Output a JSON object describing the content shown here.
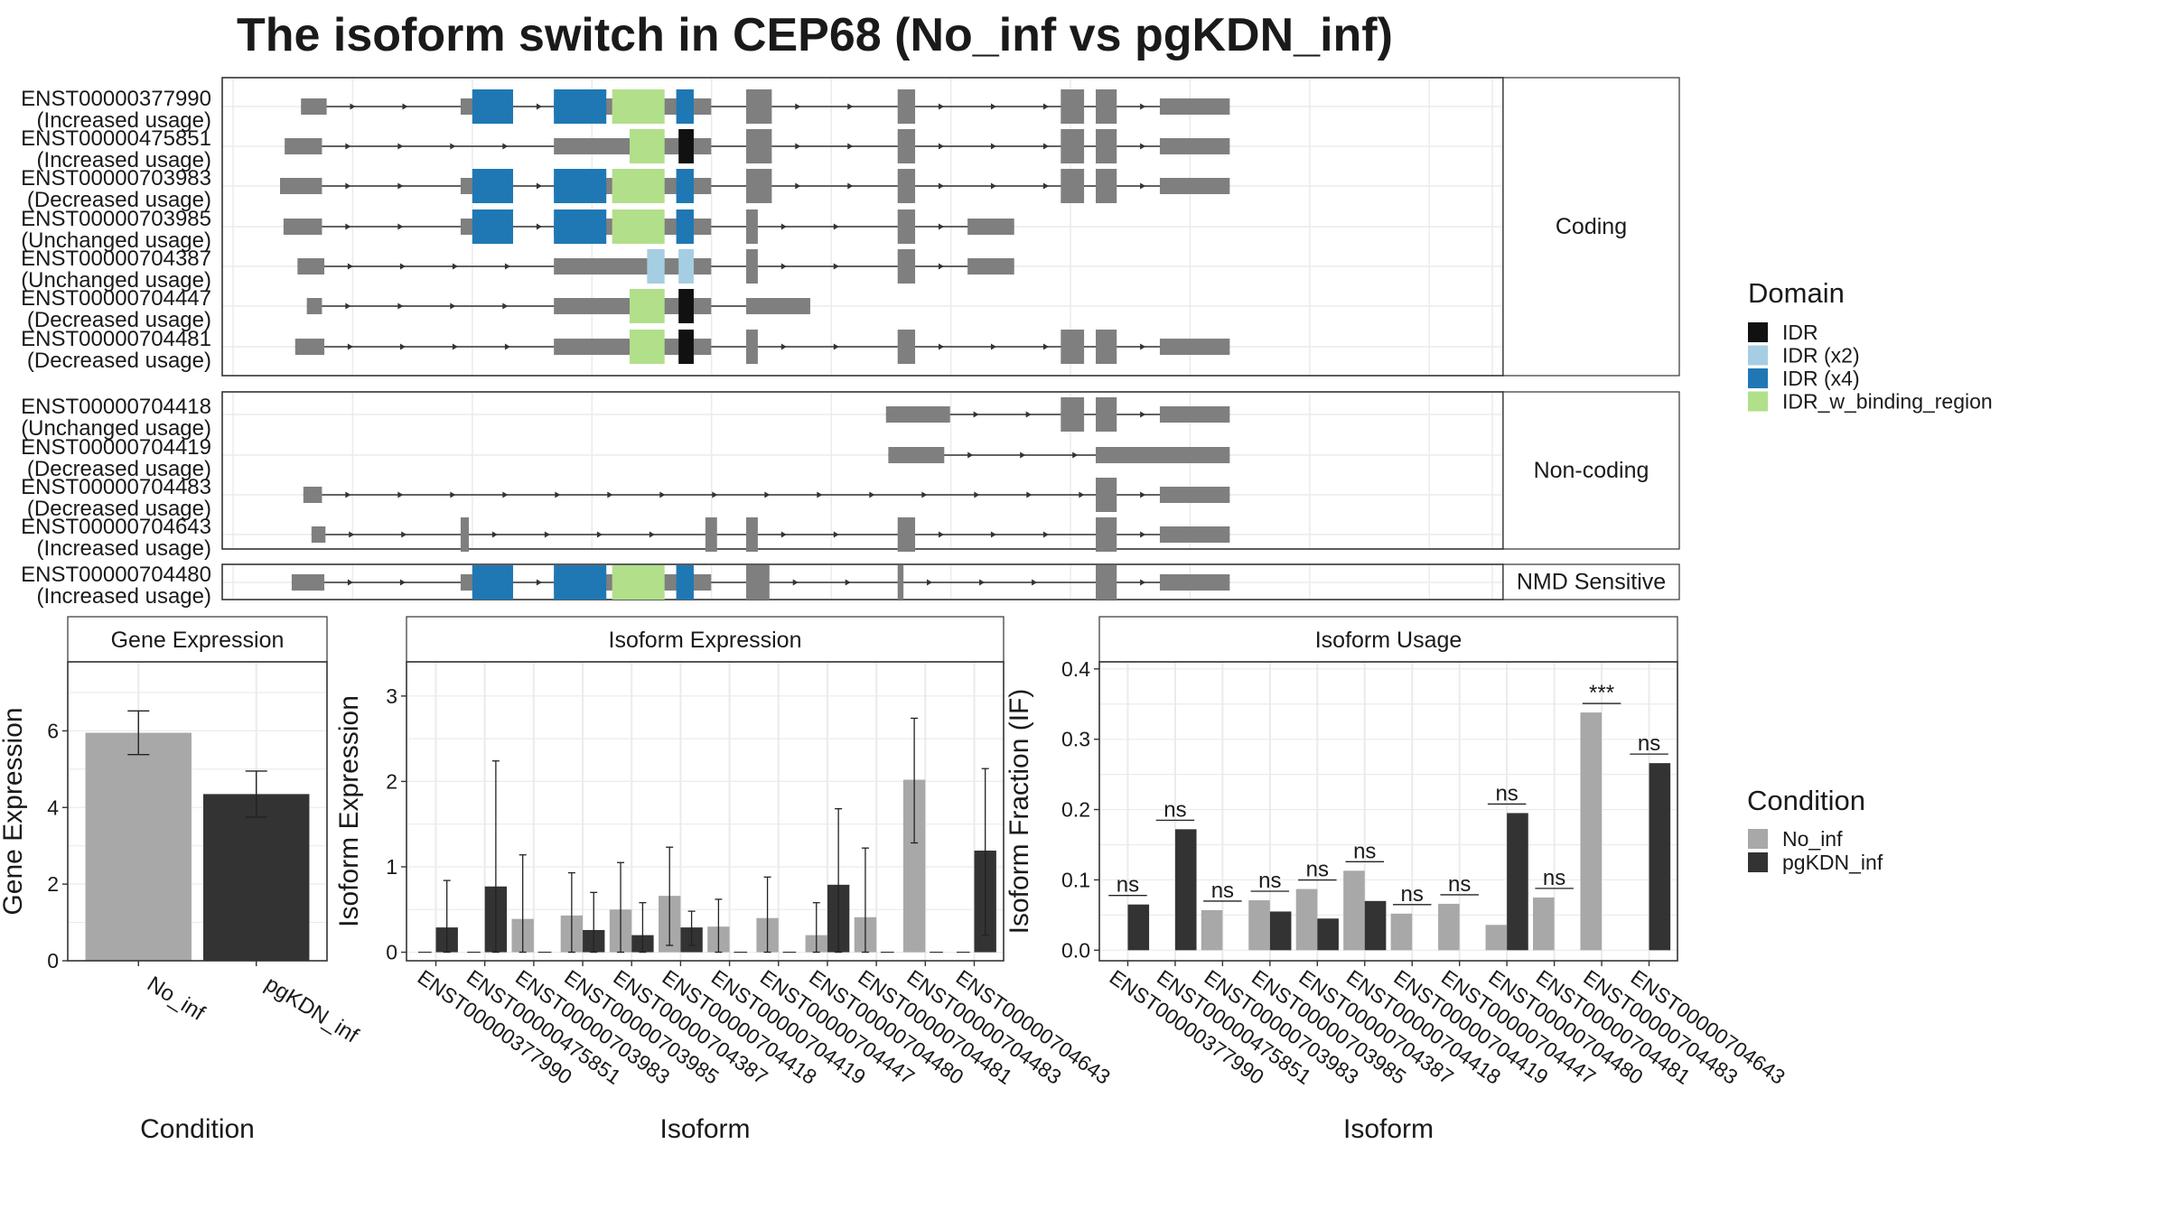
{
  "figure": {
    "title": "The isoform switch in CEP68 (No_inf vs pgKDN_inf)"
  },
  "colors": {
    "exon": "#7f7f7f",
    "intron": "#333333",
    "IDR": "#111111",
    "IDR (x2)": "#a6cee3",
    "IDR (x4)": "#1f78b4",
    "IDR_w_binding_region": "#b2df8a",
    "No_inf": "#a8a8a8",
    "pgKDN_inf": "#333333",
    "panel_border": "#333333",
    "grid": "#ebebeb"
  },
  "chart_data": [
    {
      "type": "gene_structure",
      "title": "The isoform switch in CEP68 (No_inf vs pgKDN_inf)",
      "legend": {
        "title": "Domain",
        "entries": [
          "IDR",
          "IDR (x2)",
          "IDR (x4)",
          "IDR_w_binding_region"
        ]
      },
      "groups": [
        {
          "label": "Coding",
          "transcripts": [
            {
              "id": "ENST00000377990",
              "usage": "(Increased usage)",
              "start": 0.018,
              "end": 0.815,
              "exons": [
                [
                  0.018,
                  0.04
                ],
                [
                  0.155,
                  0.2
                ],
                [
                  0.235,
                  0.37
                ],
                [
                  0.4,
                  0.422
                ],
                [
                  0.53,
                  0.545
                ],
                [
                  0.67,
                  0.69
                ],
                [
                  0.7,
                  0.718
                ],
                [
                  0.755,
                  0.815
                ]
              ],
              "domains": [
                {
                  "d": "IDR (x4)",
                  "s": 0.165,
                  "e": 0.2
                },
                {
                  "d": "IDR (x4)",
                  "s": 0.235,
                  "e": 0.28
                },
                {
                  "d": "IDR_w_binding_region",
                  "s": 0.285,
                  "e": 0.33
                },
                {
                  "d": "IDR (x4)",
                  "s": 0.34,
                  "e": 0.355
                }
              ]
            },
            {
              "id": "ENST00000475851",
              "usage": "(Increased usage)",
              "start": 0.004,
              "end": 0.815,
              "exons": [
                [
                  0.004,
                  0.036
                ],
                [
                  0.235,
                  0.37
                ],
                [
                  0.4,
                  0.422
                ],
                [
                  0.53,
                  0.545
                ],
                [
                  0.67,
                  0.69
                ],
                [
                  0.7,
                  0.718
                ],
                [
                  0.755,
                  0.815
                ]
              ],
              "domains": [
                {
                  "d": "IDR_w_binding_region",
                  "s": 0.3,
                  "e": 0.33
                },
                {
                  "d": "IDR",
                  "s": 0.342,
                  "e": 0.355
                }
              ]
            },
            {
              "id": "ENST00000703983",
              "usage": "(Decreased usage)",
              "start": 0.0,
              "end": 0.815,
              "exons": [
                [
                  0.0,
                  0.036
                ],
                [
                  0.155,
                  0.2
                ],
                [
                  0.235,
                  0.37
                ],
                [
                  0.4,
                  0.422
                ],
                [
                  0.53,
                  0.545
                ],
                [
                  0.67,
                  0.69
                ],
                [
                  0.7,
                  0.718
                ],
                [
                  0.755,
                  0.815
                ]
              ],
              "domains": [
                {
                  "d": "IDR (x4)",
                  "s": 0.165,
                  "e": 0.2
                },
                {
                  "d": "IDR (x4)",
                  "s": 0.235,
                  "e": 0.28
                },
                {
                  "d": "IDR_w_binding_region",
                  "s": 0.285,
                  "e": 0.33
                },
                {
                  "d": "IDR (x4)",
                  "s": 0.34,
                  "e": 0.355
                }
              ]
            },
            {
              "id": "ENST00000703985",
              "usage": "(Unchanged usage)",
              "start": 0.003,
              "end": 0.63,
              "exons": [
                [
                  0.003,
                  0.036
                ],
                [
                  0.155,
                  0.2
                ],
                [
                  0.235,
                  0.37
                ],
                [
                  0.4,
                  0.41
                ],
                [
                  0.53,
                  0.545
                ],
                [
                  0.59,
                  0.63
                ]
              ],
              "domains": [
                {
                  "d": "IDR (x4)",
                  "s": 0.165,
                  "e": 0.2
                },
                {
                  "d": "IDR (x4)",
                  "s": 0.235,
                  "e": 0.28
                },
                {
                  "d": "IDR_w_binding_region",
                  "s": 0.285,
                  "e": 0.33
                },
                {
                  "d": "IDR (x4)",
                  "s": 0.34,
                  "e": 0.355
                }
              ]
            },
            {
              "id": "ENST00000704387",
              "usage": "(Unchanged usage)",
              "start": 0.015,
              "end": 0.63,
              "exons": [
                [
                  0.015,
                  0.038
                ],
                [
                  0.235,
                  0.37
                ],
                [
                  0.4,
                  0.41
                ],
                [
                  0.53,
                  0.545
                ],
                [
                  0.59,
                  0.63
                ]
              ],
              "domains": [
                {
                  "d": "IDR (x2)",
                  "s": 0.315,
                  "e": 0.33
                },
                {
                  "d": "IDR (x2)",
                  "s": 0.342,
                  "e": 0.355
                }
              ]
            },
            {
              "id": "ENST00000704447",
              "usage": "(Decreased usage)",
              "start": 0.023,
              "end": 0.455,
              "exons": [
                [
                  0.023,
                  0.036
                ],
                [
                  0.235,
                  0.37
                ],
                [
                  0.4,
                  0.455
                ]
              ],
              "domains": [
                {
                  "d": "IDR_w_binding_region",
                  "s": 0.3,
                  "e": 0.33
                },
                {
                  "d": "IDR",
                  "s": 0.342,
                  "e": 0.355
                }
              ]
            },
            {
              "id": "ENST00000704481",
              "usage": "(Decreased usage)",
              "start": 0.013,
              "end": 0.815,
              "exons": [
                [
                  0.013,
                  0.038
                ],
                [
                  0.235,
                  0.37
                ],
                [
                  0.4,
                  0.41
                ],
                [
                  0.53,
                  0.545
                ],
                [
                  0.67,
                  0.69
                ],
                [
                  0.7,
                  0.718
                ],
                [
                  0.755,
                  0.815
                ]
              ],
              "domains": [
                {
                  "d": "IDR_w_binding_region",
                  "s": 0.3,
                  "e": 0.33
                },
                {
                  "d": "IDR",
                  "s": 0.342,
                  "e": 0.355
                }
              ]
            }
          ]
        },
        {
          "label": "Non-coding",
          "transcripts": [
            {
              "id": "ENST00000704418",
              "usage": "(Unchanged usage)",
              "start": 0.52,
              "end": 0.815,
              "exons": [
                [
                  0.52,
                  0.575
                ],
                [
                  0.67,
                  0.69
                ],
                [
                  0.7,
                  0.718
                ],
                [
                  0.755,
                  0.815
                ]
              ],
              "domains": []
            },
            {
              "id": "ENST00000704419",
              "usage": "(Decreased usage)",
              "start": 0.522,
              "end": 0.815,
              "exons": [
                [
                  0.522,
                  0.57
                ],
                [
                  0.7,
                  0.815
                ]
              ],
              "domains": []
            },
            {
              "id": "ENST00000704483",
              "usage": "(Decreased usage)",
              "start": 0.02,
              "end": 0.815,
              "exons": [
                [
                  0.02,
                  0.036
                ],
                [
                  0.7,
                  0.718
                ],
                [
                  0.755,
                  0.815
                ]
              ],
              "domains": []
            },
            {
              "id": "ENST00000704643",
              "usage": "(Increased usage)",
              "start": 0.027,
              "end": 0.815,
              "exons": [
                [
                  0.027,
                  0.039
                ],
                [
                  0.155,
                  0.162
                ],
                [
                  0.365,
                  0.375
                ],
                [
                  0.4,
                  0.41
                ],
                [
                  0.53,
                  0.545
                ],
                [
                  0.7,
                  0.718
                ],
                [
                  0.755,
                  0.815
                ]
              ],
              "domains": []
            }
          ]
        },
        {
          "label": "NMD Sensitive",
          "transcripts": [
            {
              "id": "ENST00000704480",
              "usage": "(Increased usage)",
              "start": 0.01,
              "end": 0.815,
              "exons": [
                [
                  0.01,
                  0.038
                ],
                [
                  0.155,
                  0.2
                ],
                [
                  0.235,
                  0.37
                ],
                [
                  0.4,
                  0.42
                ],
                [
                  0.53,
                  0.535
                ],
                [
                  0.7,
                  0.718
                ],
                [
                  0.755,
                  0.815
                ]
              ],
              "domains": [
                {
                  "d": "IDR (x4)",
                  "s": 0.165,
                  "e": 0.2
                },
                {
                  "d": "IDR (x4)",
                  "s": 0.235,
                  "e": 0.28
                },
                {
                  "d": "IDR_w_binding_region",
                  "s": 0.285,
                  "e": 0.33
                },
                {
                  "d": "IDR (x4)",
                  "s": 0.34,
                  "e": 0.355
                }
              ]
            }
          ]
        }
      ]
    },
    {
      "type": "bar",
      "title": "Gene Expression",
      "xlabel": "Condition",
      "ylabel": "Gene Expression",
      "ylim": [
        0,
        7.8
      ],
      "yticks": [
        0,
        2,
        4,
        6
      ],
      "categories": [
        "No_inf",
        "pgKDN_inf"
      ],
      "values": [
        5.95,
        4.35
      ],
      "errors": [
        [
          5.38,
          6.52
        ],
        [
          3.75,
          4.95
        ]
      ]
    },
    {
      "type": "bar",
      "title": "Isoform Expression",
      "xlabel": "Isoform",
      "ylabel": "Isoform Expression",
      "ylim": [
        -0.1,
        3.4
      ],
      "yticks": [
        0,
        1,
        2,
        3
      ],
      "categories": [
        "ENST00000377990",
        "ENST00000475851",
        "ENST00000703983",
        "ENST00000703985",
        "ENST00000704387",
        "ENST00000704418",
        "ENST00000704419",
        "ENST00000704447",
        "ENST00000704480",
        "ENST00000704481",
        "ENST00000704483",
        "ENST00000704643"
      ],
      "series": [
        {
          "name": "No_inf",
          "values": [
            0,
            0,
            0.39,
            0.43,
            0.5,
            0.66,
            0.3,
            0.4,
            0.2,
            0.41,
            2.02,
            0
          ],
          "errors": [
            [
              0,
              0
            ],
            [
              0,
              0
            ],
            [
              0,
              1.14
            ],
            [
              0,
              0.93
            ],
            [
              0,
              1.05
            ],
            [
              0.08,
              1.23
            ],
            [
              0,
              0.62
            ],
            [
              0,
              0.88
            ],
            [
              0,
              0.58
            ],
            [
              0,
              1.22
            ],
            [
              1.28,
              2.74
            ],
            [
              0,
              0
            ]
          ]
        },
        {
          "name": "pgKDN_inf",
          "values": [
            0.29,
            0.77,
            0,
            0.26,
            0.2,
            0.29,
            0,
            0,
            0.79,
            0,
            0,
            1.19
          ],
          "errors": [
            [
              0,
              0.84
            ],
            [
              0,
              2.24
            ],
            [
              0,
              0
            ],
            [
              0,
              0.7
            ],
            [
              0,
              0.58
            ],
            [
              0.08,
              0.48
            ],
            [
              0,
              0
            ],
            [
              0,
              0
            ],
            [
              0,
              1.68
            ],
            [
              0,
              0
            ],
            [
              0,
              0
            ],
            [
              0.2,
              2.15
            ]
          ]
        }
      ]
    },
    {
      "type": "bar",
      "title": "Isoform Usage",
      "xlabel": "Isoform",
      "ylabel": "Isoform Fraction (IF)",
      "ylim": [
        -0.015,
        0.41
      ],
      "yticks": [
        "0.0",
        "0.1",
        "0.2",
        "0.3",
        "0.4"
      ],
      "categories": [
        "ENST00000377990",
        "ENST00000475851",
        "ENST00000703983",
        "ENST00000703985",
        "ENST00000704387",
        "ENST00000704418",
        "ENST00000704419",
        "ENST00000704447",
        "ENST00000704480",
        "ENST00000704481",
        "ENST00000704483",
        "ENST00000704643"
      ],
      "series": [
        {
          "name": "No_inf",
          "values": [
            0,
            0,
            0.057,
            0.071,
            0.087,
            0.113,
            0.052,
            0.066,
            0.036,
            0.075,
            0.338,
            0
          ]
        },
        {
          "name": "pgKDN_inf",
          "values": [
            0.065,
            0.172,
            0,
            0.055,
            0.045,
            0.07,
            0,
            0,
            0.195,
            0,
            0,
            0.266
          ]
        }
      ],
      "annotations": [
        "ns",
        "ns",
        "ns",
        "ns",
        "ns",
        "ns",
        "ns",
        "ns",
        "ns",
        "ns",
        "***",
        "ns"
      ]
    }
  ],
  "condition_legend": {
    "title": "Condition",
    "entries": [
      "No_inf",
      "pgKDN_inf"
    ]
  }
}
